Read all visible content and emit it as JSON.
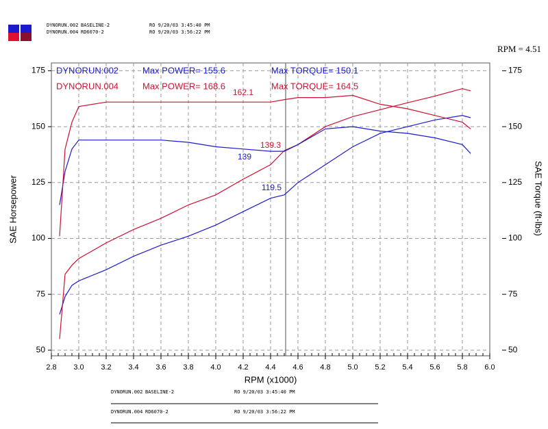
{
  "chart_data": {
    "type": "line",
    "header": [
      {
        "run": "DYNORUN.002",
        "name": "BASELINE-2",
        "stamp": "RO 9/20/03 3:45:40 PM"
      },
      {
        "run": "DYNORUN.004",
        "name": "RD6070-2",
        "stamp": "RO 9/20/03 3:56:22 PM"
      }
    ],
    "cursor": {
      "x": 4.51,
      "label": "RPM = 4.51"
    },
    "xlabel": "RPM (x1000)",
    "ylabel": "SAE Horsepower",
    "y2label": "SAE Torque (ft-lbs)",
    "legend": [
      {
        "run": "DYNORUN:002",
        "power": "Max POWER= 155.6",
        "torque": "Max TORQUE= 150.1",
        "color": "#1a1acc"
      },
      {
        "run": "DYNORUN.004",
        "power": "Max POWER= 168.6",
        "torque": "Max TORQUE= 164.5",
        "color": "#cc1030"
      }
    ],
    "x": [
      2.86,
      2.9,
      2.95,
      3.0,
      3.2,
      3.4,
      3.6,
      3.8,
      4.0,
      4.2,
      4.4,
      4.5,
      4.6,
      4.8,
      5.0,
      5.2,
      5.4,
      5.6,
      5.8,
      5.86
    ],
    "series": [
      {
        "name": "DYNORUN.002 Power",
        "color": "#1a1acc",
        "values": [
          66,
          74,
          79,
          81,
          86,
          92,
          97,
          101,
          106,
          112,
          118,
          119.5,
          125,
          133,
          141,
          147,
          150,
          153,
          155,
          154
        ]
      },
      {
        "name": "DYNORUN.004 Power",
        "color": "#cc1030",
        "values": [
          55,
          84,
          88,
          91,
          98,
          104,
          109,
          115,
          119.5,
          126.5,
          133,
          139.3,
          142,
          150,
          154.5,
          157.6,
          160.7,
          163.7,
          167,
          166
        ]
      },
      {
        "name": "DYNORUN.002 Torque",
        "color": "#1a1acc",
        "axis": "y2",
        "values": [
          115,
          130,
          140,
          144,
          144,
          144,
          144,
          143,
          141,
          140,
          139,
          139,
          142,
          149,
          150,
          148,
          147,
          145,
          142,
          138
        ]
      },
      {
        "name": "DYNORUN.004 Torque",
        "color": "#cc1030",
        "axis": "y2",
        "values": [
          101,
          140,
          152,
          159,
          161,
          161,
          161,
          161,
          161,
          161,
          161,
          162.1,
          163,
          163,
          164,
          160,
          158,
          155,
          152,
          149
        ]
      }
    ],
    "annotations": [
      {
        "value": 162.1,
        "color": "#cc1030",
        "axis": "y2"
      },
      {
        "value": 139.3,
        "color": "#cc1030"
      },
      {
        "value": 139.0,
        "color": "#1a1acc",
        "axis": "y2"
      },
      {
        "value": 119.5,
        "color": "#1a1acc"
      }
    ],
    "xlim": [
      2.8,
      6.0
    ],
    "xticks": [
      {
        "value": 2.8,
        "label": "2.8"
      },
      {
        "value": 3.0,
        "label": "3.0"
      },
      {
        "value": 3.2,
        "label": "3.2"
      },
      {
        "value": 3.4,
        "label": "3.4"
      },
      {
        "value": 3.6,
        "label": "3.6"
      },
      {
        "value": 3.8,
        "label": "3.8"
      },
      {
        "value": 4.0,
        "label": "4.0"
      },
      {
        "value": 4.2,
        "label": "4.2"
      },
      {
        "value": 4.4,
        "label": "4.4"
      },
      {
        "value": 4.6,
        "label": "4.6"
      },
      {
        "value": 4.8,
        "label": "4.8"
      },
      {
        "value": 5.0,
        "label": "5.0"
      },
      {
        "value": 5.2,
        "label": "5.2"
      },
      {
        "value": 5.4,
        "label": "5.4"
      },
      {
        "value": 5.6,
        "label": "5.6"
      },
      {
        "value": 5.8,
        "label": "5.8"
      },
      {
        "value": 6.0,
        "label": "6.0"
      }
    ],
    "ylim": [
      47.5,
      178.5
    ],
    "yticks": [
      50,
      75,
      100,
      125,
      150,
      175
    ],
    "y2lim": [
      47.5,
      178.5
    ],
    "y2ticks": [
      50,
      75,
      100,
      125,
      150,
      175
    ],
    "grid": true
  }
}
